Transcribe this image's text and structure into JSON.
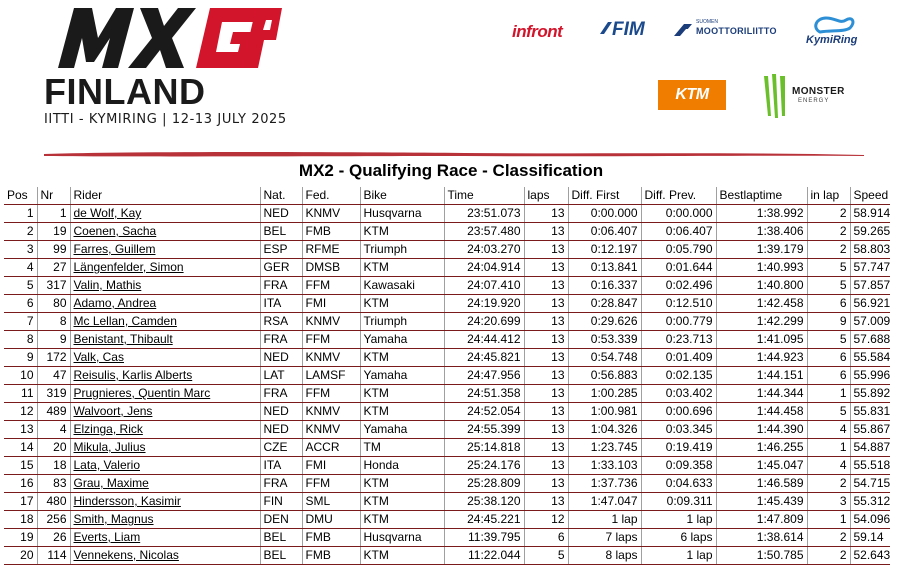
{
  "header": {
    "event_title": "FINLAND",
    "event_subtitle": "IITTI - KYMIRING | 12-13 JULY 2025",
    "logo_name": "mxgp-logo",
    "sponsors": {
      "infront": "infront",
      "fim": "FIM",
      "moto_small": "SUOMEN",
      "moto": "MOOTTORILIITTO",
      "kymiring": "KymiRing",
      "ktm": "KTM",
      "monster": "MONSTER",
      "monster_sub": "ENERGY"
    },
    "colors": {
      "accent": "#d3152c",
      "brush": "#b8323a",
      "row_line": "#7a1a1a"
    }
  },
  "title": "MX2 - Qualifying Race - Classification",
  "table": {
    "columns": [
      "Pos",
      "Nr",
      "Rider",
      "Nat.",
      "Fed.",
      "Bike",
      "Time",
      "laps",
      "Diff. First",
      "Diff. Prev.",
      "Bestlaptime",
      "in lap",
      "Speed"
    ],
    "rows": [
      {
        "pos": "1",
        "nr": "1",
        "rider": "de Wolf, Kay",
        "nat": "NED",
        "fed": "KNMV",
        "bike": "Husqvarna",
        "time": "23:51.073",
        "laps": "13",
        "diff_first": "0:00.000",
        "diff_prev": "0:00.000",
        "best": "1:38.992",
        "in_lap": "2",
        "speed": "58.914"
      },
      {
        "pos": "2",
        "nr": "19",
        "rider": "Coenen, Sacha",
        "nat": "BEL",
        "fed": "FMB",
        "bike": "KTM",
        "time": "23:57.480",
        "laps": "13",
        "diff_first": "0:06.407",
        "diff_prev": "0:06.407",
        "best": "1:38.406",
        "in_lap": "2",
        "speed": "59.265"
      },
      {
        "pos": "3",
        "nr": "99",
        "rider": "Farres, Guillem",
        "nat": "ESP",
        "fed": "RFME",
        "bike": "Triumph",
        "time": "24:03.270",
        "laps": "13",
        "diff_first": "0:12.197",
        "diff_prev": "0:05.790",
        "best": "1:39.179",
        "in_lap": "2",
        "speed": "58.803"
      },
      {
        "pos": "4",
        "nr": "27",
        "rider": "Längenfelder, Simon",
        "nat": "GER",
        "fed": "DMSB",
        "bike": "KTM",
        "time": "24:04.914",
        "laps": "13",
        "diff_first": "0:13.841",
        "diff_prev": "0:01.644",
        "best": "1:40.993",
        "in_lap": "5",
        "speed": "57.747"
      },
      {
        "pos": "5",
        "nr": "317",
        "rider": "Valin, Mathis",
        "nat": "FRA",
        "fed": "FFM",
        "bike": "Kawasaki",
        "time": "24:07.410",
        "laps": "13",
        "diff_first": "0:16.337",
        "diff_prev": "0:02.496",
        "best": "1:40.800",
        "in_lap": "5",
        "speed": "57.857"
      },
      {
        "pos": "6",
        "nr": "80",
        "rider": "Adamo, Andrea",
        "nat": "ITA",
        "fed": "FMI",
        "bike": "KTM",
        "time": "24:19.920",
        "laps": "13",
        "diff_first": "0:28.847",
        "diff_prev": "0:12.510",
        "best": "1:42.458",
        "in_lap": "6",
        "speed": "56.921"
      },
      {
        "pos": "7",
        "nr": "8",
        "rider": "Mc Lellan, Camden",
        "nat": "RSA",
        "fed": "KNMV",
        "bike": "Triumph",
        "time": "24:20.699",
        "laps": "13",
        "diff_first": "0:29.626",
        "diff_prev": "0:00.779",
        "best": "1:42.299",
        "in_lap": "9",
        "speed": "57.009"
      },
      {
        "pos": "8",
        "nr": "9",
        "rider": "Benistant, Thibault",
        "nat": "FRA",
        "fed": "FFM",
        "bike": "Yamaha",
        "time": "24:44.412",
        "laps": "13",
        "diff_first": "0:53.339",
        "diff_prev": "0:23.713",
        "best": "1:41.095",
        "in_lap": "5",
        "speed": "57.688"
      },
      {
        "pos": "9",
        "nr": "172",
        "rider": "Valk, Cas",
        "nat": "NED",
        "fed": "KNMV",
        "bike": "KTM",
        "time": "24:45.821",
        "laps": "13",
        "diff_first": "0:54.748",
        "diff_prev": "0:01.409",
        "best": "1:44.923",
        "in_lap": "6",
        "speed": "55.584"
      },
      {
        "pos": "10",
        "nr": "47",
        "rider": "Reisulis, Karlis Alberts",
        "nat": "LAT",
        "fed": "LAMSF",
        "bike": "Yamaha",
        "time": "24:47.956",
        "laps": "13",
        "diff_first": "0:56.883",
        "diff_prev": "0:02.135",
        "best": "1:44.151",
        "in_lap": "6",
        "speed": "55.996"
      },
      {
        "pos": "11",
        "nr": "319",
        "rider": "Prugnieres, Quentin Marc",
        "nat": "FRA",
        "fed": "FFM",
        "bike": "KTM",
        "time": "24:51.358",
        "laps": "13",
        "diff_first": "1:00.285",
        "diff_prev": "0:03.402",
        "best": "1:44.344",
        "in_lap": "1",
        "speed": "55.892"
      },
      {
        "pos": "12",
        "nr": "489",
        "rider": "Walvoort, Jens",
        "nat": "NED",
        "fed": "KNMV",
        "bike": "KTM",
        "time": "24:52.054",
        "laps": "13",
        "diff_first": "1:00.981",
        "diff_prev": "0:00.696",
        "best": "1:44.458",
        "in_lap": "5",
        "speed": "55.831"
      },
      {
        "pos": "13",
        "nr": "4",
        "rider": "Elzinga, Rick",
        "nat": "NED",
        "fed": "KNMV",
        "bike": "Yamaha",
        "time": "24:55.399",
        "laps": "13",
        "diff_first": "1:04.326",
        "diff_prev": "0:03.345",
        "best": "1:44.390",
        "in_lap": "4",
        "speed": "55.867"
      },
      {
        "pos": "14",
        "nr": "20",
        "rider": "Mikula, Julius",
        "nat": "CZE",
        "fed": "ACCR",
        "bike": "TM",
        "time": "25:14.818",
        "laps": "13",
        "diff_first": "1:23.745",
        "diff_prev": "0:19.419",
        "best": "1:46.255",
        "in_lap": "1",
        "speed": "54.887"
      },
      {
        "pos": "15",
        "nr": "18",
        "rider": "Lata, Valerio",
        "nat": "ITA",
        "fed": "FMI",
        "bike": "Honda",
        "time": "25:24.176",
        "laps": "13",
        "diff_first": "1:33.103",
        "diff_prev": "0:09.358",
        "best": "1:45.047",
        "in_lap": "4",
        "speed": "55.518"
      },
      {
        "pos": "16",
        "nr": "83",
        "rider": "Grau, Maxime",
        "nat": "FRA",
        "fed": "FFM",
        "bike": "KTM",
        "time": "25:28.809",
        "laps": "13",
        "diff_first": "1:37.736",
        "diff_prev": "0:04.633",
        "best": "1:46.589",
        "in_lap": "2",
        "speed": "54.715"
      },
      {
        "pos": "17",
        "nr": "480",
        "rider": "Hindersson, Kasimir",
        "nat": "FIN",
        "fed": "SML",
        "bike": "KTM",
        "time": "25:38.120",
        "laps": "13",
        "diff_first": "1:47.047",
        "diff_prev": "0:09.311",
        "best": "1:45.439",
        "in_lap": "3",
        "speed": "55.312"
      },
      {
        "pos": "18",
        "nr": "256",
        "rider": "Smith, Magnus",
        "nat": "DEN",
        "fed": "DMU",
        "bike": "KTM",
        "time": "24:45.221",
        "laps": "12",
        "diff_first": "1 lap",
        "diff_prev": "1 lap",
        "best": "1:47.809",
        "in_lap": "1",
        "speed": "54.096"
      },
      {
        "pos": "19",
        "nr": "26",
        "rider": "Everts, Liam",
        "nat": "BEL",
        "fed": "FMB",
        "bike": "Husqvarna",
        "time": "11:39.795",
        "laps": "6",
        "diff_first": "7 laps",
        "diff_prev": "6 laps",
        "best": "1:38.614",
        "in_lap": "2",
        "speed": "59.14"
      },
      {
        "pos": "20",
        "nr": "114",
        "rider": "Vennekens, Nicolas",
        "nat": "BEL",
        "fed": "FMB",
        "bike": "KTM",
        "time": "11:22.044",
        "laps": "5",
        "diff_first": "8 laps",
        "diff_prev": "1 lap",
        "best": "1:50.785",
        "in_lap": "2",
        "speed": "52.643"
      }
    ]
  }
}
